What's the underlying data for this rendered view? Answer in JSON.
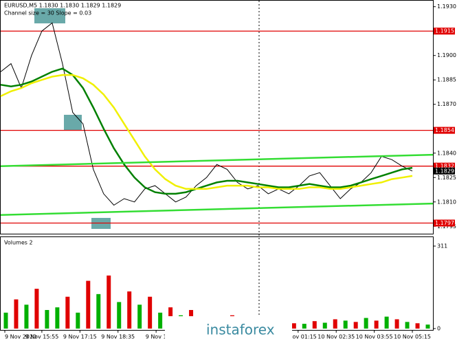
{
  "chart_data": [
    {
      "type": "line",
      "title": "EURUSD,M5  1.1830 1.1830 1.1829 1.1829",
      "subtitle": "Channel size = 30 Slope = 0.03",
      "x": [
        0,
        1,
        2,
        3,
        4,
        5,
        6,
        7,
        8,
        9,
        10,
        11,
        12,
        13,
        14,
        15,
        16,
        17,
        18,
        19,
        20,
        21,
        22,
        23,
        24,
        25,
        26,
        27,
        28,
        29,
        30,
        31,
        32,
        33,
        34,
        35,
        36,
        37,
        38,
        39,
        40
      ],
      "xlim": [
        0,
        42
      ],
      "xticks": [
        {
          "value": 0.4,
          "label": "9 Nov 2020"
        },
        {
          "value": 4,
          "label": "9 Nov 15:55"
        },
        {
          "value": 7.7,
          "label": "9 Nov 17:15"
        },
        {
          "value": 11.4,
          "label": "9 Nov 18:35"
        },
        {
          "value": 15.1,
          "label": "9 Nov 1"
        },
        {
          "value": 28.9,
          "label": "10 Nov 01:15"
        },
        {
          "value": 32.6,
          "label": "10 Nov 02:35"
        },
        {
          "value": 36.3,
          "label": "10 Nov 03:55"
        },
        {
          "value": 40,
          "label": "10 Nov 05:15"
        }
      ],
      "ylim": [
        1.1793,
        1.1932
      ],
      "yticks": [
        {
          "value": 1.193,
          "label": "1.1930"
        },
        {
          "value": 1.19,
          "label": "1.1900"
        },
        1.1885,
        {
          "value": 1.187,
          "label": "1.1870"
        },
        {
          "value": 1.184,
          "label": "1.1840"
        },
        1.1825,
        {
          "value": 1.181,
          "label": "1.1810"
        },
        1.1795
      ],
      "levels": [
        1.1915,
        1.1854,
        1.1832,
        1.1797
      ],
      "level_color": "#e00000",
      "last_price": 1.1829,
      "series": [
        {
          "name": "EURUSD",
          "color": "#000000",
          "values": [
            1.189,
            1.1895,
            1.188,
            1.19,
            1.1915,
            1.192,
            1.1895,
            1.1865,
            1.1858,
            1.183,
            1.1815,
            1.1808,
            1.1812,
            1.181,
            1.1818,
            1.182,
            1.1815,
            1.181,
            1.1813,
            1.182,
            1.1825,
            1.1833,
            1.183,
            1.1822,
            1.1818,
            1.182,
            1.1815,
            1.1818,
            1.1815,
            1.182,
            1.1826,
            1.1828,
            1.182,
            1.1812,
            1.1818,
            1.1822,
            1.1828,
            1.1838,
            1.1836,
            1.1832,
            1.1829
          ]
        },
        {
          "name": "MA fast",
          "color": "#008000",
          "values": [
            1.1882,
            1.1881,
            1.1882,
            1.1884,
            1.1887,
            1.189,
            1.1892,
            1.1888,
            1.188,
            1.1868,
            1.1855,
            1.1843,
            1.1833,
            1.1825,
            1.1819,
            1.1816,
            1.1815,
            1.1815,
            1.1816,
            1.1818,
            1.182,
            1.1822,
            1.1823,
            1.1823,
            1.1822,
            1.1821,
            1.182,
            1.1819,
            1.1819,
            1.182,
            1.1821,
            1.182,
            1.1819,
            1.1819,
            1.182,
            1.1822,
            1.1824,
            1.1826,
            1.1828,
            1.183,
            1.1831
          ]
        },
        {
          "name": "MA slow",
          "color": "#f0f000",
          "values": [
            1.1875,
            1.1878,
            1.188,
            1.1883,
            1.1885,
            1.1887,
            1.1888,
            1.1888,
            1.1886,
            1.1882,
            1.1876,
            1.1868,
            1.1858,
            1.1848,
            1.1838,
            1.183,
            1.1824,
            1.182,
            1.1818,
            1.1818,
            1.1818,
            1.1819,
            1.182,
            1.182,
            1.182,
            1.1819,
            1.1819,
            1.1818,
            1.1818,
            1.1818,
            1.1819,
            1.1819,
            1.1818,
            1.1818,
            1.1819,
            1.182,
            1.1821,
            1.1822,
            1.1824,
            1.1825,
            1.1826
          ]
        },
        {
          "name": "Channel upper",
          "color": "#33dd33",
          "x": [
            0,
            42
          ],
          "values": [
            1.1832,
            1.1839
          ]
        },
        {
          "name": "Channel lower",
          "color": "#33dd33",
          "x": [
            0,
            42
          ],
          "values": [
            1.1802,
            1.1809
          ]
        }
      ]
    },
    {
      "type": "bar",
      "title": "Volumes 2",
      "ylim": [
        0,
        311
      ],
      "yticks": [
        0,
        311
      ],
      "values": [
        60,
        110,
        90,
        150,
        70,
        80,
        120,
        60,
        180,
        130,
        200,
        100,
        140,
        90,
        120,
        60,
        80,
        50,
        70,
        40,
        45,
        30,
        50,
        25,
        35,
        20,
        30,
        25,
        20,
        18,
        28,
        22,
        35,
        30,
        25,
        40,
        30,
        45,
        35,
        25,
        20,
        15
      ],
      "colors": [
        "#00b000",
        "#e00000",
        "#00b000",
        "#e00000",
        "#00b000",
        "#00b000",
        "#e00000",
        "#00b000",
        "#e00000",
        "#00b000",
        "#e00000",
        "#00b000",
        "#e00000",
        "#00b000",
        "#e00000",
        "#00b000",
        "#e00000",
        "#00b000",
        "#e00000",
        "#00b000",
        "#e00000",
        "#00b000",
        "#e00000",
        "#00b000",
        "#e00000",
        "#00b000",
        "#e00000",
        "#00b000",
        "#e00000",
        "#00b000",
        "#e00000",
        "#00b000",
        "#e00000",
        "#00b000",
        "#e00000",
        "#00b000",
        "#e00000",
        "#00b000",
        "#e00000",
        "#00b000",
        "#e00000",
        "#00b000"
      ]
    }
  ],
  "watermark": "instaforex"
}
